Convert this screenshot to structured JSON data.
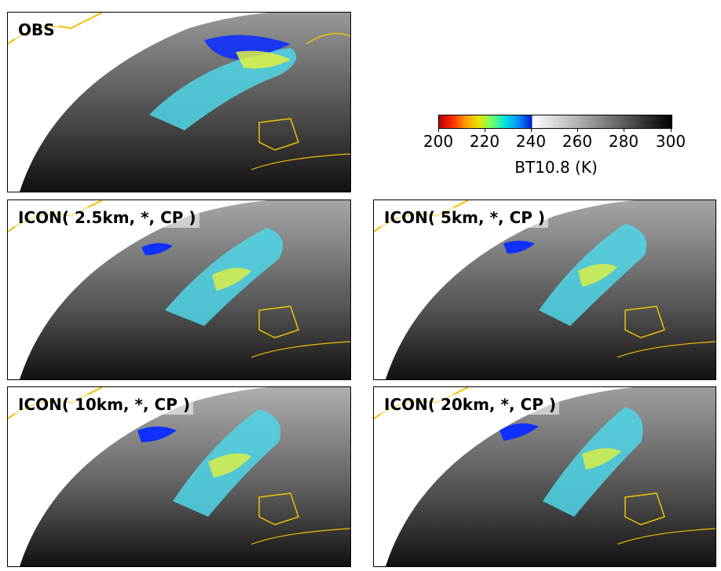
{
  "panels": [
    {
      "id": "obs",
      "label": "OBS"
    },
    {
      "id": "icon-2p5km",
      "label": "ICON( 2.5km, *, CP )"
    },
    {
      "id": "icon-5km",
      "label": "ICON( 5km, *, CP )"
    },
    {
      "id": "icon-10km",
      "label": "ICON( 10km, *, CP )"
    },
    {
      "id": "icon-20km",
      "label": "ICON( 20km, *, CP )"
    }
  ],
  "colorbar": {
    "label": "BT10.8 (K)",
    "ticks": [
      "200",
      "220",
      "240",
      "260",
      "280",
      "300"
    ],
    "min": 200,
    "max": 300,
    "cold_colors": [
      "#b80000",
      "#ff2a00",
      "#ff9a00",
      "#e6e600",
      "#6cff6c",
      "#00e0e0",
      "#0a8cff",
      "#0018c8"
    ],
    "warm_colors": [
      "#ffffff",
      "#b0b0b0",
      "#5a5a5a",
      "#000000"
    ]
  },
  "colors": {
    "coastline": "#f0c000",
    "land_white": "#ffffff",
    "ocean_cloud_gray": "#6a6a6a",
    "cloud_band_cyan": "#4fd6e8",
    "cloud_blue": "#1030ff",
    "cloud_yellow": "#e0f040"
  }
}
